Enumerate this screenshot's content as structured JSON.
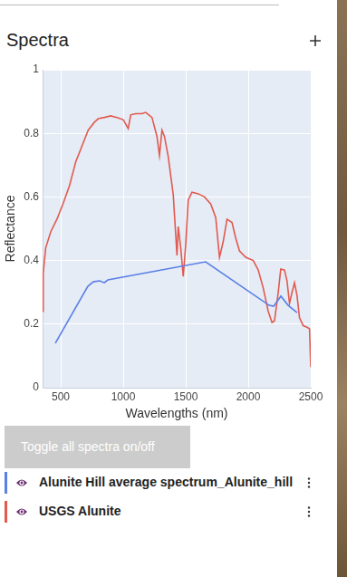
{
  "panel": {
    "title": "Spectra",
    "button": "Toggle all spectra on/off"
  },
  "chart_data": {
    "type": "line",
    "x_label": "Wavelengths (nm)",
    "y_label": "Reflectance",
    "xlim": [
      355,
      2500
    ],
    "xticks": [
      500,
      1000,
      1500,
      2000,
      2500
    ],
    "ylim": [
      0,
      1
    ],
    "yticks": [
      0,
      0.2,
      0.4,
      0.6,
      0.8,
      1
    ],
    "grid": true,
    "series": [
      {
        "name": "Alunite Hill average spectrum_Alunite_hill",
        "color": "#5a7fe6",
        "x": [
          457,
          717,
          761,
          812,
          848,
          877,
          1659,
          2167,
          2203,
          2261,
          2319,
          2391
        ],
        "values": [
          0.14,
          0.319,
          0.333,
          0.336,
          0.33,
          0.339,
          0.396,
          0.259,
          0.256,
          0.288,
          0.259,
          0.236
        ]
      },
      {
        "name": "USGS Alunite",
        "color": "#e15a4f",
        "x": [
          355,
          360,
          380,
          420,
          470,
          520,
          570,
          620,
          670,
          720,
          770,
          800,
          850,
          900,
          950,
          1000,
          1040,
          1060,
          1100,
          1150,
          1180,
          1230,
          1270,
          1290,
          1310,
          1330,
          1360,
          1400,
          1420,
          1430,
          1440,
          1460,
          1480,
          1500,
          1520,
          1550,
          1600,
          1650,
          1700,
          1740,
          1770,
          1800,
          1830,
          1870,
          1900,
          1930,
          1980,
          2040,
          2080,
          2120,
          2160,
          2190,
          2210,
          2240,
          2260,
          2290,
          2310,
          2330,
          2350,
          2370,
          2390,
          2410,
          2440,
          2470,
          2490,
          2500
        ],
        "values": [
          0.24,
          0.36,
          0.44,
          0.49,
          0.53,
          0.58,
          0.635,
          0.71,
          0.76,
          0.81,
          0.835,
          0.846,
          0.85,
          0.855,
          0.85,
          0.843,
          0.815,
          0.858,
          0.862,
          0.862,
          0.866,
          0.85,
          0.79,
          0.73,
          0.81,
          0.79,
          0.727,
          0.607,
          0.48,
          0.416,
          0.507,
          0.44,
          0.35,
          0.45,
          0.59,
          0.615,
          0.61,
          0.6,
          0.578,
          0.535,
          0.41,
          0.46,
          0.53,
          0.52,
          0.47,
          0.43,
          0.41,
          0.4,
          0.37,
          0.313,
          0.24,
          0.205,
          0.21,
          0.3,
          0.373,
          0.37,
          0.336,
          0.265,
          0.3,
          0.33,
          0.29,
          0.22,
          0.195,
          0.19,
          0.185,
          0.065
        ]
      }
    ]
  }
}
